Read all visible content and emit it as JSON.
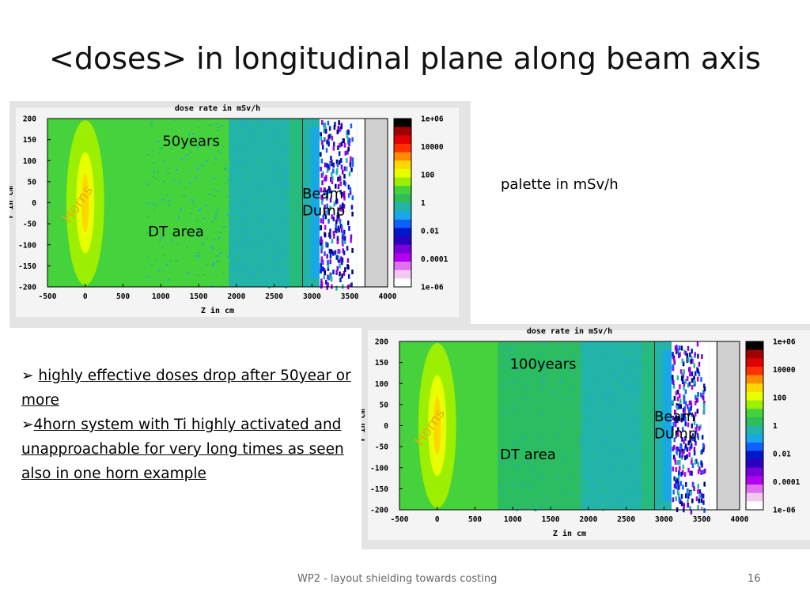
{
  "slide": {
    "title": "<doses> in longitudinal plane along beam axis",
    "palette_label": "palette in mSv/h",
    "bullets": [
      {
        "marker": "➢ ",
        "text": "highly effective doses drop after 50year or more"
      },
      {
        "marker": "➢",
        "text": "4horn system with Ti highly activated and unapproachable for very long times as seen also in one horn example"
      }
    ],
    "footer_text": "WP2 - layout shielding towards  costing",
    "page_number": "16"
  },
  "chart_data": [
    {
      "type": "heatmap",
      "title": "dose rate in mSv/h",
      "xlabel": "Z in cm",
      "ylabel": "Y in cm",
      "xlim": [
        -500,
        4000
      ],
      "ylim": [
        -200,
        200
      ],
      "xticks": [
        "-500",
        "0",
        "500",
        "1000",
        "1500",
        "2000",
        "2500",
        "3000",
        "3500",
        "4000"
      ],
      "yticks": [
        "200",
        "150",
        "100",
        "50",
        "0",
        "-50",
        "-100",
        "-150",
        "-200"
      ],
      "colorbar_labels": [
        "1e+06",
        "10000",
        "100",
        "1",
        "0.01",
        "0.0001",
        "1e-06"
      ],
      "colorscale": "log",
      "annotations": {
        "time": "50years",
        "horns": "Horns",
        "dt_area": "DT area",
        "beam_dump": "Beam Dump"
      }
    },
    {
      "type": "heatmap",
      "title": "dose rate in mSv/h",
      "xlabel": "Z in cm",
      "ylabel": "Y in cm",
      "xlim": [
        -500,
        4000
      ],
      "ylim": [
        -200,
        200
      ],
      "xticks": [
        "-500",
        "0",
        "500",
        "1000",
        "1500",
        "2000",
        "2500",
        "3000",
        "3500",
        "4000"
      ],
      "yticks": [
        "200",
        "150",
        "100",
        "50",
        "0",
        "-50",
        "-100",
        "-150",
        "-200"
      ],
      "colorbar_labels": [
        "1e+06",
        "10000",
        "100",
        "1",
        "0.01",
        "0.0001",
        "1e-06"
      ],
      "colorscale": "log",
      "annotations": {
        "time": "100years",
        "horns": "Horns",
        "dt_area": "DT area",
        "beam_dump": "Beam Dump"
      }
    }
  ],
  "palette": [
    "#000000",
    "#a00000",
    "#e00000",
    "#ff3000",
    "#ff8c00",
    "#ffd700",
    "#e8ff00",
    "#9cef00",
    "#46d23c",
    "#2dbe5a",
    "#22b4a8",
    "#18a8e6",
    "#1060ff",
    "#0018c8",
    "#2c00c0",
    "#7800d8",
    "#b400f0",
    "#e070f0",
    "#f0c8f0",
    "#ffffff"
  ]
}
